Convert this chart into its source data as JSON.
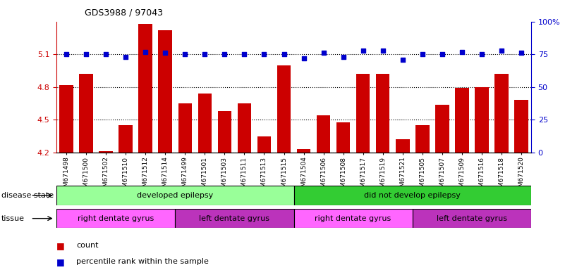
{
  "title": "GDS3988 / 97043",
  "samples": [
    "GSM671498",
    "GSM671500",
    "GSM671502",
    "GSM671510",
    "GSM671512",
    "GSM671514",
    "GSM671499",
    "GSM671501",
    "GSM671503",
    "GSM671511",
    "GSM671513",
    "GSM671515",
    "GSM671504",
    "GSM671506",
    "GSM671508",
    "GSM671517",
    "GSM671519",
    "GSM671521",
    "GSM671505",
    "GSM671507",
    "GSM671509",
    "GSM671516",
    "GSM671518",
    "GSM671520"
  ],
  "bar_values": [
    4.82,
    4.92,
    4.21,
    4.45,
    5.38,
    5.32,
    4.65,
    4.74,
    4.58,
    4.65,
    4.35,
    5.0,
    4.23,
    4.54,
    4.48,
    4.92,
    4.92,
    4.32,
    4.45,
    4.64,
    4.79,
    4.8,
    4.92,
    4.68
  ],
  "percentile_values": [
    75,
    75,
    75,
    73,
    77,
    76,
    75,
    75,
    75,
    75,
    75,
    75,
    72,
    76,
    73,
    78,
    78,
    71,
    75,
    75,
    77,
    75,
    78,
    76
  ],
  "ylim_left": [
    4.2,
    5.4
  ],
  "ylim_right": [
    0,
    100
  ],
  "yticks_left": [
    4.2,
    4.5,
    4.8,
    5.1
  ],
  "yticks_right": [
    0,
    25,
    50,
    75,
    100
  ],
  "bar_color": "#cc0000",
  "dot_color": "#0000cc",
  "disease_state_groups": [
    {
      "label": "developed epilepsy",
      "start": 0,
      "end": 11,
      "color": "#99ff99"
    },
    {
      "label": "did not develop epilepsy",
      "start": 12,
      "end": 23,
      "color": "#33cc33"
    }
  ],
  "tissue_groups": [
    {
      "label": "right dentate gyrus",
      "start": 0,
      "end": 5,
      "color": "#ff66ff"
    },
    {
      "label": "left dentate gyrus",
      "start": 6,
      "end": 11,
      "color": "#bb33bb"
    },
    {
      "label": "right dentate gyrus",
      "start": 12,
      "end": 17,
      "color": "#ff66ff"
    },
    {
      "label": "left dentate gyrus",
      "start": 18,
      "end": 23,
      "color": "#bb33bb"
    }
  ],
  "legend_count_label": "count",
  "legend_pct_label": "percentile rank within the sample",
  "disease_state_label": "disease state",
  "tissue_label": "tissue"
}
